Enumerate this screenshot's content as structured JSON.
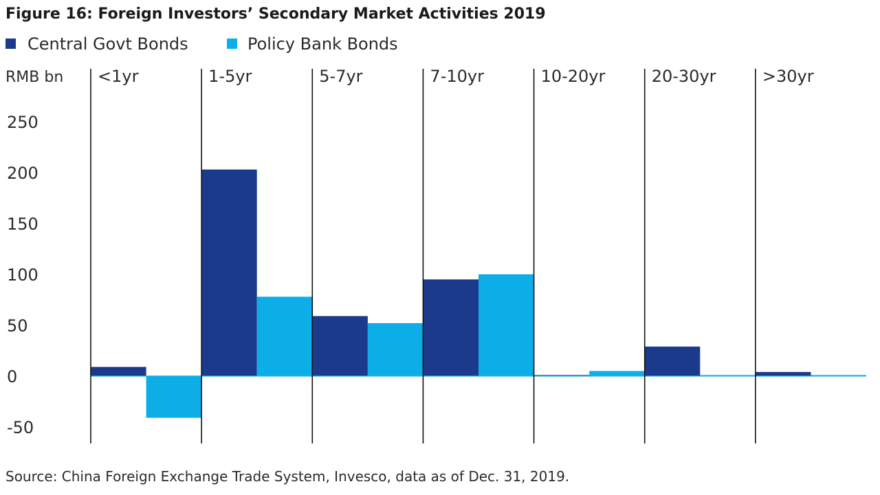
{
  "chart_data": {
    "type": "bar",
    "title": "Figure 16:  Foreign Investors’ Secondary Market Activities 2019",
    "ylabel": "RMB bn",
    "xlabel": "",
    "categories": [
      "<1yr",
      "1-5yr",
      "5-7yr",
      "7-10yr",
      "10-20yr",
      "20-30yr",
      ">30yr"
    ],
    "series": [
      {
        "name": "Central Govt Bonds",
        "color": "#1b3a8c",
        "values": [
          9,
          203,
          59,
          95,
          1,
          29,
          4
        ]
      },
      {
        "name": "Policy Bank Bonds",
        "color": "#0daee8",
        "values": [
          -41,
          78,
          52,
          100,
          5,
          0,
          0
        ]
      }
    ],
    "ylim": [
      -65,
      275
    ],
    "yticks": [
      250,
      200,
      150,
      100,
      50,
      0,
      -50
    ],
    "ytick_labels": [
      "250",
      "200",
      "150",
      "100",
      "50",
      "0",
      "-50"
    ],
    "grid": false,
    "legend": "top-left",
    "source": "Source: China Foreign Exchange Trade System, Invesco, data as of Dec. 31, 2019."
  }
}
